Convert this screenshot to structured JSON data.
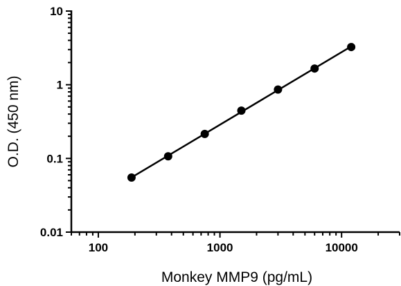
{
  "chart_data": {
    "type": "scatter",
    "title": "",
    "xlabel": "Monkey MMP9 (pg/mL)",
    "ylabel": "O.D. (450 nm)",
    "x_scale": "log",
    "y_scale": "log",
    "xlim": [
      60,
      30000
    ],
    "ylim": [
      0.01,
      10
    ],
    "x_ticks": [
      100,
      1000,
      10000
    ],
    "x_tick_labels": [
      "100",
      "1000",
      "10000"
    ],
    "y_ticks": [
      0.01,
      0.1,
      1,
      10
    ],
    "y_tick_labels": [
      "0.01",
      "0.1",
      "1",
      "10"
    ],
    "grid": false,
    "legend": "none",
    "fit_line": true,
    "series": [
      {
        "x": [
          187.5,
          375,
          750,
          1500,
          3000,
          6000,
          12000
        ],
        "y": [
          0.055,
          0.107,
          0.215,
          0.445,
          0.86,
          1.66,
          3.25
        ],
        "color": "#000000"
      }
    ]
  }
}
